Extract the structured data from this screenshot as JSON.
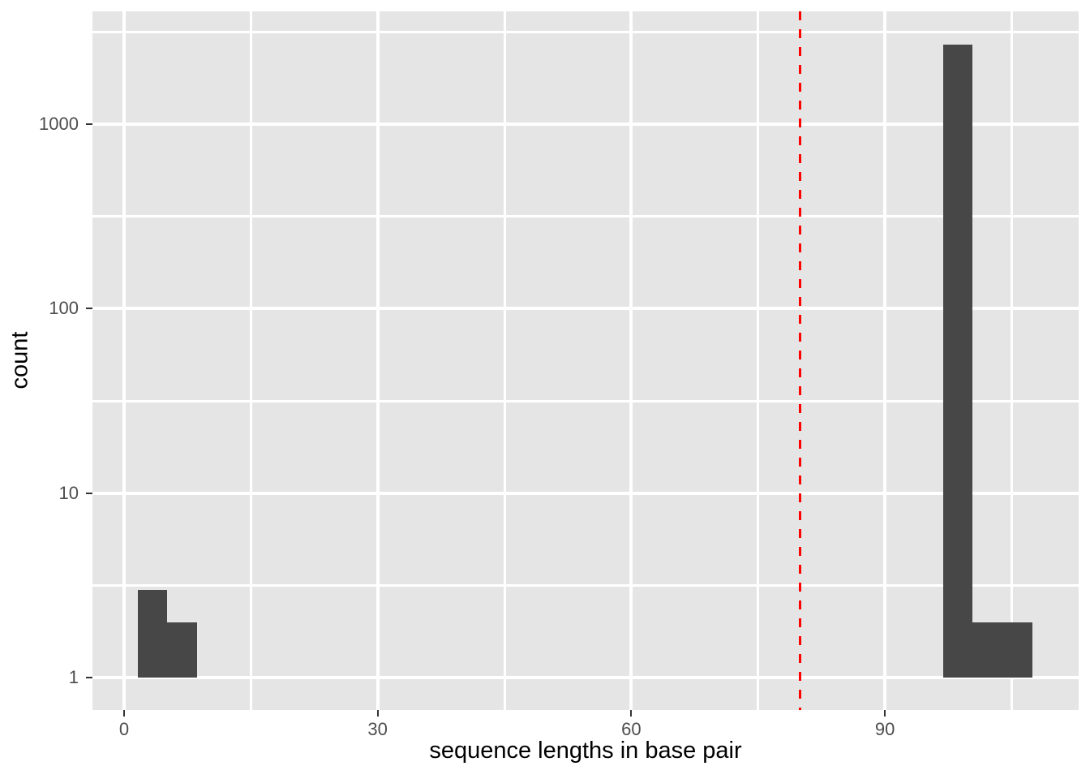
{
  "chart_data": {
    "type": "bar",
    "subtype": "histogram-log-y",
    "title": "",
    "xlabel": "sequence lengths in base pair",
    "ylabel": "count",
    "x_major_ticks": [
      0,
      30,
      60,
      90
    ],
    "x_minor_ticks": [
      15,
      45,
      75,
      105
    ],
    "y_major_ticks": [
      1,
      10,
      100,
      1000
    ],
    "y_minor_ticks": [
      3.1623,
      31.623,
      316.23,
      3162.3
    ],
    "y_scale": "log10",
    "x_domain": [
      -3.74,
      112.92
    ],
    "y_log_domain": [
      -0.176,
      3.612
    ],
    "baseline_count": 1,
    "bins": [
      {
        "x_start": 1.6,
        "x_end": 5.1,
        "count": 3
      },
      {
        "x_start": 5.1,
        "x_end": 8.6,
        "count": 2
      },
      {
        "x_start": 96.9,
        "x_end": 100.4,
        "count": 2700
      },
      {
        "x_start": 100.4,
        "x_end": 107.5,
        "count": 2
      }
    ],
    "vline": {
      "x": 80,
      "style": "dashed",
      "color": "#FF0000"
    },
    "grid": true,
    "legend": "none"
  },
  "style": {
    "background": "#FFFFFF",
    "panel_background": "#E5E5E5",
    "grid_color": "#FFFFFF",
    "bar_color": "#474747",
    "tick_label_color": "#4D4D4D",
    "axis_title_color": "#000000",
    "tick_mark_color": "#333333",
    "vline_color": "#FF0000"
  }
}
